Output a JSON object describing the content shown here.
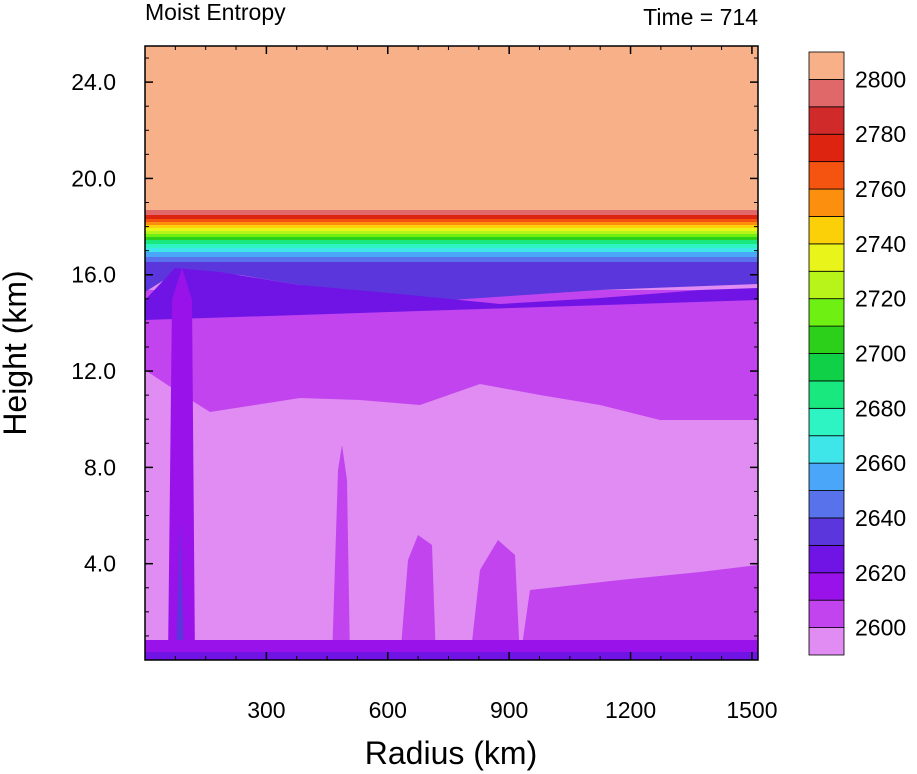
{
  "chart_data": {
    "type": "heatmap",
    "title": "Moist Entropy",
    "subtitle": "Time = 714",
    "xlabel": "Radius (km)",
    "ylabel": "Height (km)",
    "xlim": [
      0,
      1515
    ],
    "ylim": [
      0,
      25.5
    ],
    "xticks": [
      300,
      600,
      900,
      1200,
      1500
    ],
    "xtick_labels": [
      "300",
      "600",
      "900",
      "1200",
      "1500"
    ],
    "yticks": [
      4,
      8,
      12,
      16,
      20,
      24
    ],
    "ytick_labels": [
      "4.0",
      "8.0",
      "12.0",
      "16.0",
      "20.0",
      "24.0"
    ],
    "colorbar": {
      "levels": [
        2600,
        2610,
        2620,
        2630,
        2640,
        2650,
        2660,
        2670,
        2680,
        2690,
        2700,
        2710,
        2720,
        2730,
        2740,
        2750,
        2760,
        2770,
        2780,
        2790,
        2800
      ],
      "labels": [
        "2600",
        "2620",
        "2640",
        "2660",
        "2680",
        "2700",
        "2720",
        "2740",
        "2760",
        "2780",
        "2800"
      ],
      "colors": [
        "#e08cf2",
        "#c244ee",
        "#9a12ea",
        "#7014e6",
        "#5a36dc",
        "#5872ec",
        "#4aa6f8",
        "#3ee6ea",
        "#2ef4c4",
        "#18e87e",
        "#10d048",
        "#2cd01a",
        "#6ef012",
        "#b8f41a",
        "#e8f41a",
        "#fcd008",
        "#fc900e",
        "#f45410",
        "#dc2410",
        "#d02a2a",
        "#e06868",
        "#f8b088"
      ]
    },
    "fields": [
      {
        "name": "upper",
        "value_range": [
          2800,
          2810
        ],
        "region": "above ~18.7 km"
      },
      {
        "name": "tropopause gradient",
        "value_range": [
          2600,
          2800
        ],
        "region": "~15.5 to 18.7 km"
      },
      {
        "name": "mid troposphere",
        "value_range": [
          2610,
          2630
        ],
        "region": "~10 to 15.5 km"
      },
      {
        "name": "lower troposphere",
        "value_range": [
          2600,
          2610
        ],
        "region": "~0.5 to 12 km"
      },
      {
        "name": "eyewall column",
        "value_range": [
          2610,
          2650
        ],
        "region": "radius ~80-130 km, surface to 16 km"
      },
      {
        "name": "boundary layer",
        "value_range": [
          2610,
          2650
        ],
        "region": "lowest ~1 km"
      }
    ]
  }
}
